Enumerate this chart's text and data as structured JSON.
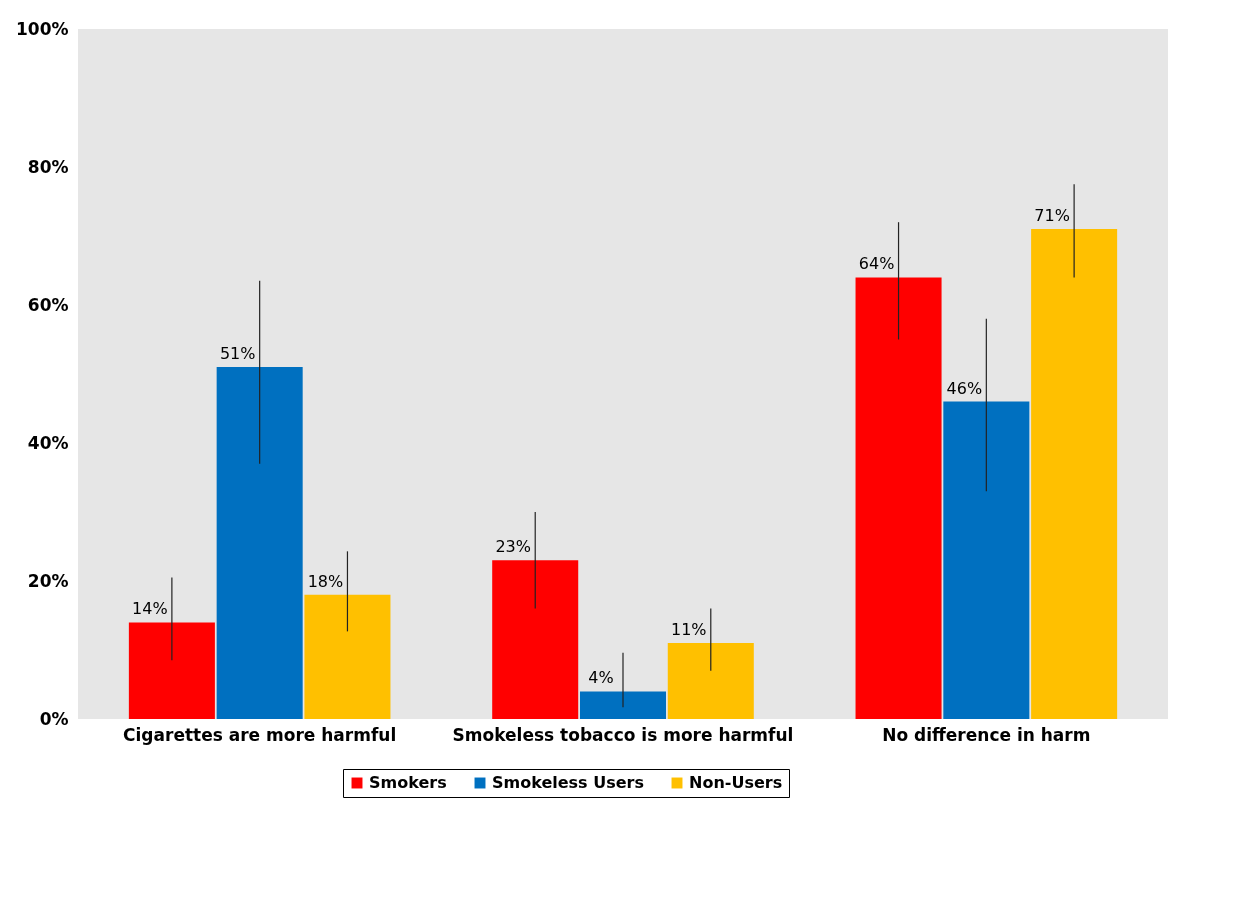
{
  "chart_data": {
    "type": "bar",
    "categories": [
      "Cigarettes are more harmful",
      "Smokeless tobacco is more harmful",
      "No difference in harm"
    ],
    "series": [
      {
        "name": "Smokers",
        "color": "#ff0000",
        "values": [
          14,
          23,
          64
        ],
        "errors": [
          [
            8.5,
            20.5
          ],
          [
            16,
            30
          ],
          [
            55,
            72
          ]
        ],
        "value_labels": [
          "14%",
          "23%",
          "64%"
        ]
      },
      {
        "name": "Smokeless Users",
        "color": "#0070c0",
        "values": [
          51,
          4,
          46
        ],
        "errors": [
          [
            37,
            63.5
          ],
          [
            1.7,
            9.6
          ],
          [
            33,
            58
          ]
        ],
        "value_labels": [
          "51%",
          "4%",
          "46%"
        ]
      },
      {
        "name": "Non-Users",
        "color": "#ffc000",
        "values": [
          18,
          11,
          71
        ],
        "errors": [
          [
            12.7,
            24.3
          ],
          [
            7,
            16
          ],
          [
            64,
            77.5
          ]
        ],
        "value_labels": [
          "18%",
          "11%",
          "71%"
        ]
      }
    ],
    "ylim": [
      0,
      100
    ],
    "yticks": [
      {
        "value": 0,
        "label": "0%"
      },
      {
        "value": 20,
        "label": "20%"
      },
      {
        "value": 40,
        "label": "40%"
      },
      {
        "value": 60,
        "label": "60%"
      },
      {
        "value": 80,
        "label": "80%"
      },
      {
        "value": 100,
        "label": "100%"
      }
    ],
    "grid": false,
    "legend": "bottom"
  }
}
